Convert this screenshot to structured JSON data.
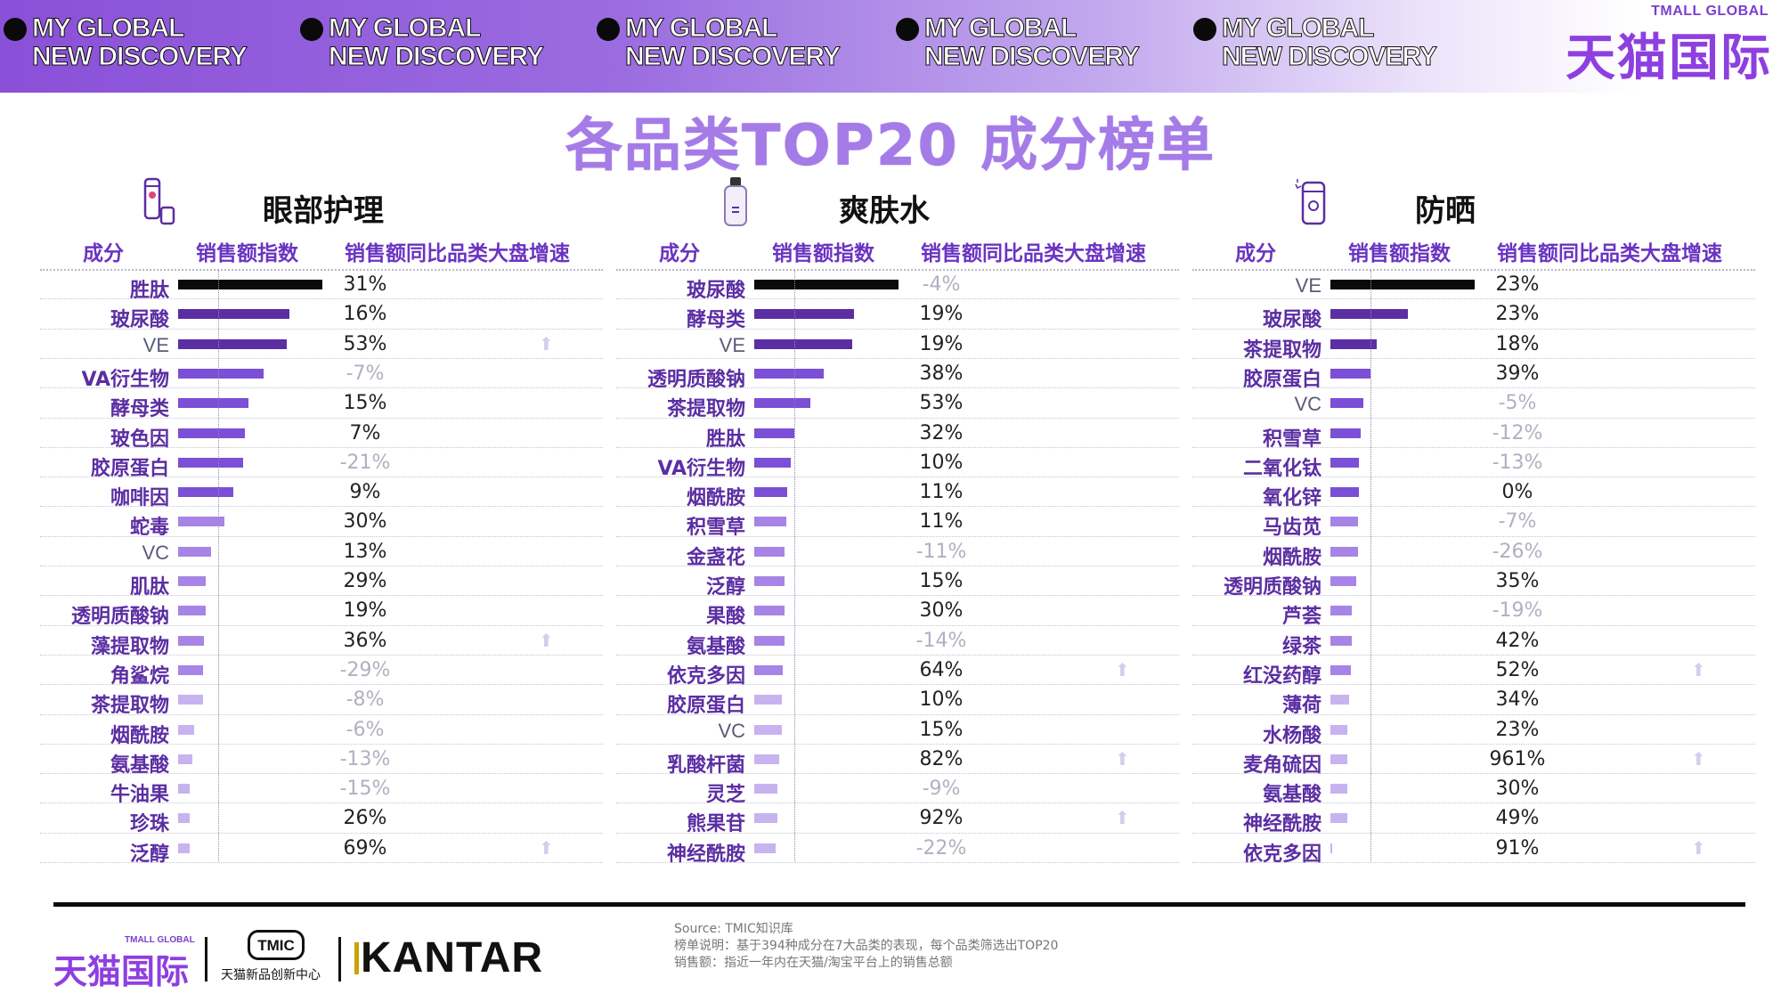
{
  "banner": {
    "tags": [
      {
        "line1": "MY GLOBAL",
        "line2": "NEW DISCOVERY"
      },
      {
        "line1": "MY GLOBAL",
        "line2": "NEW DISCOVERY"
      },
      {
        "line1": "MY GLOBAL",
        "line2": "NEW DISCOVERY"
      },
      {
        "line1": "MY GLOBAL",
        "line2": "NEW DISCOVERY"
      },
      {
        "line1": "MY GLOBAL",
        "line2": "NEW DISCOVERY"
      }
    ],
    "brand_en": "TMALL GLOBAL",
    "brand_cn": "天猫国际"
  },
  "title": "各品类TOP20 成分榜单",
  "columns": {
    "ingredient": "成分",
    "index": "销售额指数",
    "growth": "销售额同比品类大盘增速"
  },
  "colors": {
    "accent": "#8e3fe0",
    "top_bar": "#0a0a0a",
    "dark_bar": "#5b2ea3",
    "mid_bar": "#7b4fd6",
    "light_bar": "#c7b3f0"
  },
  "chart_data": [
    {
      "type": "bar",
      "title": "眼部护理",
      "icon": "eye-cream-icon",
      "categories": [
        "胜肽",
        "玻尿酸",
        "VE",
        "VA衍生物",
        "酵母类",
        "玻色因",
        "胶原蛋白",
        "咖啡因",
        "蛇毒",
        "VC",
        "肌肽",
        "透明质酸钠",
        "藻提取物",
        "角鲨烷",
        "茶提取物",
        "烟酰胺",
        "氨基酸",
        "牛油果",
        "珍珠",
        "泛醇"
      ],
      "index_values": [
        100,
        77,
        75,
        59,
        49,
        46,
        45,
        38,
        32,
        23,
        19,
        19,
        18,
        17,
        17,
        11,
        10,
        8,
        8,
        8
      ],
      "growth": [
        "31%",
        "16%",
        "53%",
        "-7%",
        "15%",
        "7%",
        "-21%",
        "9%",
        "30%",
        "13%",
        "29%",
        "19%",
        "36%",
        "-29%",
        "-8%",
        "-6%",
        "-13%",
        "-15%",
        "26%",
        "69%"
      ],
      "highlight": [
        false,
        false,
        true,
        false,
        false,
        false,
        false,
        false,
        false,
        false,
        false,
        false,
        true,
        false,
        false,
        false,
        false,
        false,
        false,
        true
      ]
    },
    {
      "type": "bar",
      "title": "爽肤水",
      "icon": "toner-bottle-icon",
      "categories": [
        "玻尿酸",
        "酵母类",
        "VE",
        "透明质酸钠",
        "茶提取物",
        "胜肽",
        "VA衍生物",
        "烟酰胺",
        "积雪草",
        "金盏花",
        "泛醇",
        "果酸",
        "氨基酸",
        "依克多因",
        "胶原蛋白",
        "VC",
        "乳酸杆菌",
        "灵芝",
        "熊果苷",
        "神经酰胺"
      ],
      "index_values": [
        100,
        69,
        68,
        48,
        39,
        28,
        25,
        23,
        22,
        21,
        21,
        21,
        21,
        20,
        19,
        19,
        17,
        16,
        16,
        15
      ],
      "growth": [
        "-4%",
        "19%",
        "19%",
        "38%",
        "53%",
        "32%",
        "10%",
        "11%",
        "11%",
        "-11%",
        "15%",
        "30%",
        "-14%",
        "64%",
        "10%",
        "15%",
        "82%",
        "-9%",
        "92%",
        "-22%"
      ],
      "highlight": [
        false,
        false,
        false,
        false,
        false,
        false,
        false,
        false,
        false,
        false,
        false,
        false,
        false,
        true,
        false,
        false,
        true,
        false,
        true,
        false
      ]
    },
    {
      "type": "bar",
      "title": "防晒",
      "icon": "sunscreen-icon",
      "categories": [
        "VE",
        "玻尿酸",
        "茶提取物",
        "胶原蛋白",
        "VC",
        "积雪草",
        "二氧化钛",
        "氧化锌",
        "马齿苋",
        "烟酰胺",
        "透明质酸钠",
        "芦荟",
        "绿茶",
        "红没药醇",
        "薄荷",
        "水杨酸",
        "麦角硫因",
        "氨基酸",
        "神经酰胺",
        "依克多因"
      ],
      "index_values": [
        100,
        54,
        32,
        28,
        23,
        21,
        20,
        20,
        19,
        19,
        18,
        15,
        15,
        14,
        13,
        12,
        12,
        12,
        12,
        1
      ],
      "growth": [
        "23%",
        "23%",
        "18%",
        "39%",
        "-5%",
        "-12%",
        "-13%",
        "0%",
        "-7%",
        "-26%",
        "35%",
        "-19%",
        "42%",
        "52%",
        "34%",
        "23%",
        "961%",
        "30%",
        "49%",
        "91%"
      ],
      "highlight": [
        false,
        false,
        false,
        false,
        false,
        false,
        false,
        false,
        false,
        false,
        false,
        false,
        false,
        true,
        false,
        false,
        true,
        false,
        false,
        true
      ]
    }
  ],
  "footer": {
    "logo_en": "TMALL GLOBAL",
    "logo_cn": "天猫国际",
    "tmic_badge": "TMIC",
    "tmic_sub": "天猫新品创新中心",
    "kantar": "KANTAR",
    "notes": [
      "Source: TMIC知识库",
      "榜单说明：基于394种成分在7大品类的表现，每个品类筛选出TOP20",
      "销售额：指近一年内在天猫/淘宝平台上的销售总额"
    ]
  }
}
